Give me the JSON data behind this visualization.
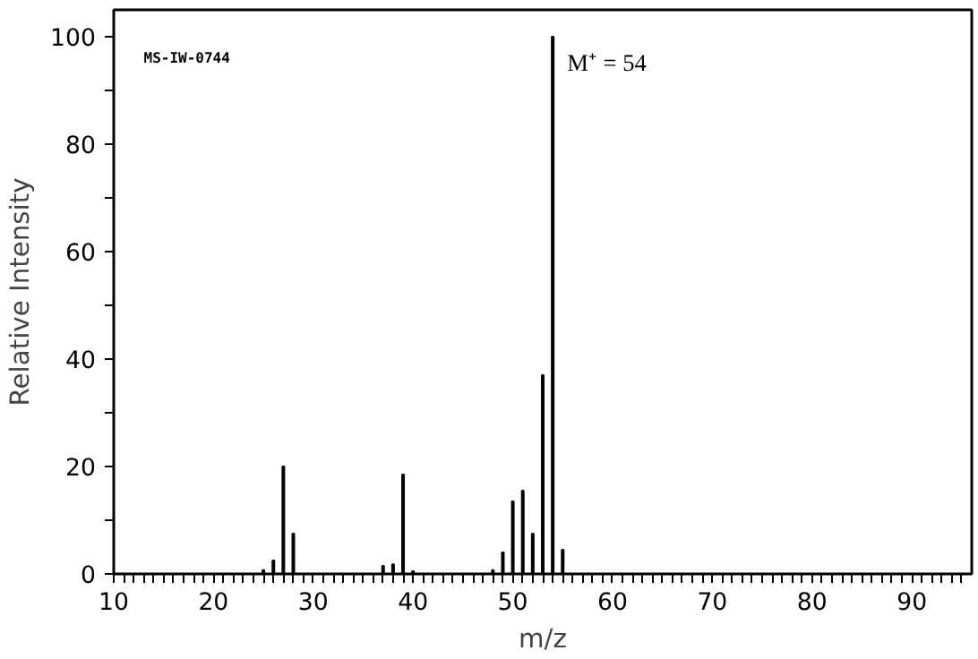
{
  "chart_data": {
    "type": "bar",
    "xlabel": "m/z",
    "ylabel": "Relative Intensity",
    "x": [
      25,
      26,
      27,
      28,
      37,
      38,
      39,
      40,
      48,
      49,
      50,
      51,
      52,
      53,
      54,
      55
    ],
    "values": [
      0.7,
      2.5,
      20,
      7.5,
      1.5,
      1.8,
      18.5,
      0.5,
      0.7,
      4,
      13.5,
      15.5,
      7.5,
      37,
      100,
      4.5
    ],
    "color": "#000000",
    "xlim": [
      10,
      96
    ],
    "ylim": [
      0,
      105
    ],
    "xticks": [
      10,
      {
        "value": 11,
        "label": null
      },
      {
        "value": 12,
        "label": null
      },
      {
        "value": 13,
        "label": null
      },
      {
        "value": 14,
        "label": null
      },
      {
        "value": 15,
        "label": null
      },
      {
        "value": 16,
        "label": null
      },
      {
        "value": 17,
        "label": null
      },
      {
        "value": 18,
        "label": null
      },
      {
        "value": 19,
        "label": null
      },
      20,
      {
        "value": 21,
        "label": null
      },
      {
        "value": 22,
        "label": null
      },
      {
        "value": 23,
        "label": null
      },
      {
        "value": 24,
        "label": null
      },
      {
        "value": 25,
        "label": null
      },
      {
        "value": 26,
        "label": null
      },
      {
        "value": 27,
        "label": null
      },
      {
        "value": 28,
        "label": null
      },
      {
        "value": 29,
        "label": null
      },
      30,
      {
        "value": 31,
        "label": null
      },
      {
        "value": 32,
        "label": null
      },
      {
        "value": 33,
        "label": null
      },
      {
        "value": 34,
        "label": null
      },
      {
        "value": 35,
        "label": null
      },
      {
        "value": 36,
        "label": null
      },
      {
        "value": 37,
        "label": null
      },
      {
        "value": 38,
        "label": null
      },
      {
        "value": 39,
        "label": null
      },
      40,
      {
        "value": 41,
        "label": null
      },
      {
        "value": 42,
        "label": null
      },
      {
        "value": 43,
        "label": null
      },
      {
        "value": 44,
        "label": null
      },
      {
        "value": 45,
        "label": null
      },
      {
        "value": 46,
        "label": null
      },
      {
        "value": 47,
        "label": null
      },
      {
        "value": 48,
        "label": null
      },
      {
        "value": 49,
        "label": null
      },
      50,
      {
        "value": 51,
        "label": null
      },
      {
        "value": 52,
        "label": null
      },
      {
        "value": 53,
        "label": null
      },
      {
        "value": 54,
        "label": null
      },
      {
        "value": 55,
        "label": null
      },
      {
        "value": 56,
        "label": null
      },
      {
        "value": 57,
        "label": null
      },
      {
        "value": 58,
        "label": null
      },
      {
        "value": 59,
        "label": null
      },
      60,
      {
        "value": 61,
        "label": null
      },
      {
        "value": 62,
        "label": null
      },
      {
        "value": 63,
        "label": null
      },
      {
        "value": 64,
        "label": null
      },
      {
        "value": 65,
        "label": null
      },
      {
        "value": 66,
        "label": null
      },
      {
        "value": 67,
        "label": null
      },
      {
        "value": 68,
        "label": null
      },
      {
        "value": 69,
        "label": null
      },
      70,
      {
        "value": 71,
        "label": null
      },
      {
        "value": 72,
        "label": null
      },
      {
        "value": 73,
        "label": null
      },
      {
        "value": 74,
        "label": null
      },
      {
        "value": 75,
        "label": null
      },
      {
        "value": 76,
        "label": null
      },
      {
        "value": 77,
        "label": null
      },
      {
        "value": 78,
        "label": null
      },
      {
        "value": 79,
        "label": null
      },
      80,
      {
        "value": 81,
        "label": null
      },
      {
        "value": 82,
        "label": null
      },
      {
        "value": 83,
        "label": null
      },
      {
        "value": 84,
        "label": null
      },
      {
        "value": 85,
        "label": null
      },
      {
        "value": 86,
        "label": null
      },
      {
        "value": 87,
        "label": null
      },
      {
        "value": 88,
        "label": null
      },
      {
        "value": 89,
        "label": null
      },
      90,
      {
        "value": 91,
        "label": null
      },
      {
        "value": 92,
        "label": null
      },
      {
        "value": 93,
        "label": null
      },
      {
        "value": 94,
        "label": null
      },
      {
        "value": 95,
        "label": null
      }
    ],
    "yticks": [
      0,
      {
        "value": 10,
        "label": null
      },
      20,
      {
        "value": 30,
        "label": null
      },
      40,
      {
        "value": 50,
        "label": null
      },
      60,
      {
        "value": 70,
        "label": null
      },
      80,
      {
        "value": 90,
        "label": null
      },
      100
    ],
    "grid": false,
    "annotations": [
      "MS-IW-0744",
      {
        "text": "M⁺ = 54",
        "x": 54,
        "y": 100
      }
    ]
  }
}
